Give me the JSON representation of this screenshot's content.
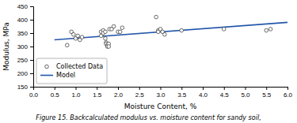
{
  "chart_data": {
    "type": "scatter",
    "caption": "Figure 15. Backcalculated modulus vs. moisture content for sandy soil,",
    "x_label": "Moisture Content, %",
    "y_label": "Modulus, MPa",
    "xlim": [
      0.0,
      6.0
    ],
    "ylim": [
      150,
      450
    ],
    "xticks": [
      {
        "value": 0.0,
        "label": "0.0"
      },
      0.5,
      {
        "value": 1.0,
        "label": "1.0"
      },
      1.5,
      {
        "value": 2.0,
        "label": "2.0"
      },
      2.5,
      {
        "value": 3.0,
        "label": "3.0"
      },
      3.5,
      {
        "value": 4.0,
        "label": "4.0"
      },
      4.5,
      {
        "value": 5.0,
        "label": "5.0"
      },
      5.5,
      {
        "value": 6.0,
        "label": "6.0"
      }
    ],
    "yticks": [
      150,
      200,
      250,
      300,
      350,
      400,
      450
    ],
    "grid": false,
    "legend": "lower left",
    "series": [
      {
        "name": "Collected Data",
        "type": "scatter",
        "marker": "open-circle",
        "color": "#444444",
        "x": [
          0.8,
          0.9,
          0.95,
          1.0,
          1.05,
          1.1,
          1.15,
          1.6,
          1.6,
          1.65,
          1.65,
          1.7,
          1.7,
          1.72,
          1.72,
          1.75,
          1.75,
          1.78,
          1.78,
          1.8,
          1.85,
          1.9,
          2.0,
          2.05,
          2.1,
          2.9,
          2.95,
          2.95,
          3.0,
          3.05,
          3.1,
          3.5,
          4.5,
          5.5,
          5.6
        ],
        "values": [
          305,
          355,
          345,
          330,
          340,
          325,
          335,
          355,
          340,
          360,
          350,
          355,
          330,
          315,
          310,
          305,
          300,
          310,
          300,
          365,
          365,
          375,
          355,
          355,
          370,
          410,
          360,
          355,
          365,
          355,
          345,
          360,
          365,
          360,
          365
        ]
      },
      {
        "name": "Model",
        "type": "line",
        "line_style": "solid",
        "color": "#2255aa",
        "x": [
          0.5,
          6.0
        ],
        "values": [
          325,
          390
        ]
      }
    ]
  }
}
